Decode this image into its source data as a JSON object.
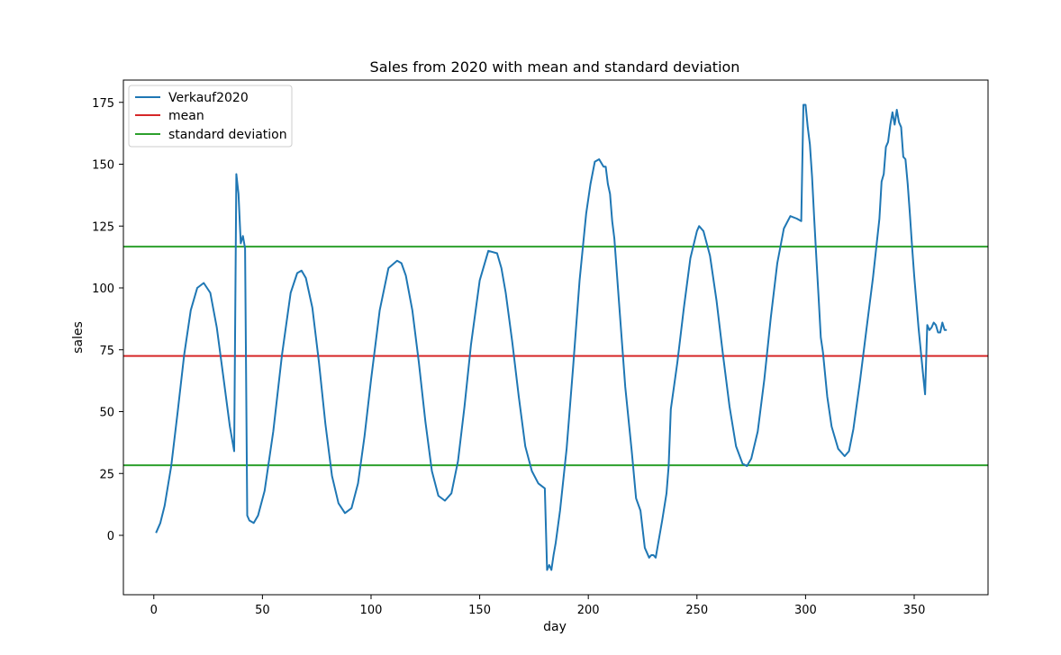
{
  "chart_data": {
    "type": "line",
    "title": "Sales from 2020 with mean and standard deviation",
    "xlabel": "day",
    "ylabel": "sales",
    "xlim": [
      -14,
      384
    ],
    "ylim": [
      -24,
      184
    ],
    "xticks": [
      0,
      50,
      100,
      150,
      200,
      250,
      300,
      350
    ],
    "yticks": [
      0,
      25,
      50,
      75,
      100,
      125,
      150,
      175
    ],
    "grid": false,
    "legend_position": "top-left",
    "series": [
      {
        "name": "Verkauf2020",
        "color": "#1f77b4",
        "x": [
          1,
          3,
          5,
          8,
          11,
          14,
          17,
          20,
          23,
          26,
          29,
          32,
          35,
          37,
          38,
          39,
          40,
          41,
          42,
          43,
          44,
          46,
          48,
          51,
          55,
          59,
          63,
          66,
          68,
          70,
          73,
          76,
          79,
          82,
          85,
          88,
          91,
          94,
          97,
          100,
          104,
          108,
          112,
          114,
          116,
          119,
          122,
          125,
          128,
          131,
          134,
          137,
          140,
          143,
          146,
          150,
          154,
          158,
          160,
          162,
          165,
          168,
          171,
          174,
          177,
          180,
          181,
          182,
          183,
          184,
          185,
          187,
          190,
          193,
          196,
          199,
          201,
          203,
          205,
          207,
          208,
          209,
          210,
          211,
          212,
          214,
          217,
          220,
          222,
          224,
          226,
          227,
          228,
          229,
          230,
          231,
          232,
          234,
          236,
          237,
          238,
          241,
          244,
          247,
          250,
          251,
          253,
          256,
          259,
          262,
          265,
          268,
          271,
          273,
          275,
          278,
          281,
          284,
          287,
          290,
          293,
          296,
          298,
          299,
          300,
          301,
          302,
          303,
          304,
          305,
          306,
          307,
          308,
          310,
          312,
          315,
          318,
          320,
          322,
          325,
          328,
          331,
          334,
          335,
          336,
          337,
          338,
          339,
          340,
          341,
          342,
          343,
          344,
          345,
          346,
          347,
          348,
          349,
          350,
          352,
          354,
          355,
          356,
          357,
          358,
          359,
          360,
          361,
          362,
          363,
          364,
          365
        ],
        "values": [
          1,
          5,
          12,
          28,
          50,
          73,
          91,
          100,
          102,
          98,
          84,
          64,
          44,
          34,
          146,
          138,
          118,
          121,
          116,
          8,
          6,
          5,
          8,
          18,
          42,
          73,
          98,
          106,
          107,
          104,
          92,
          70,
          45,
          24,
          13,
          9,
          11,
          21,
          40,
          63,
          91,
          108,
          111,
          110,
          105,
          91,
          70,
          46,
          26,
          16,
          14,
          17,
          30,
          52,
          77,
          103,
          115,
          114,
          108,
          98,
          78,
          56,
          36,
          26,
          21,
          19,
          -14,
          -12,
          -14,
          -8,
          -3,
          10,
          35,
          68,
          103,
          130,
          142,
          151,
          152,
          149,
          149,
          142,
          138,
          127,
          120,
          96,
          60,
          34,
          15,
          10,
          -5,
          -7,
          -9,
          -8,
          -8,
          -9,
          -4,
          6,
          17,
          28,
          51,
          70,
          92,
          112,
          123,
          125,
          123,
          113,
          95,
          73,
          52,
          36,
          29,
          28,
          31,
          42,
          63,
          88,
          110,
          124,
          129,
          128,
          127,
          174,
          174,
          165,
          158,
          145,
          128,
          112,
          96,
          80,
          74,
          56,
          44,
          35,
          32,
          34,
          43,
          62,
          83,
          104,
          128,
          143,
          146,
          157,
          159,
          166,
          171,
          166,
          172,
          167,
          165,
          153,
          152,
          142,
          130,
          117,
          105,
          84,
          66,
          57,
          85,
          83,
          84,
          86,
          85,
          82,
          82,
          86,
          83,
          83
        ]
      }
    ],
    "hlines": [
      {
        "name": "mean",
        "y": 72.5,
        "color": "#d62728"
      },
      {
        "name": "standard deviation",
        "y": 116.7,
        "color": "#2ca02c"
      },
      {
        "name": "standard deviation",
        "y": 28.3,
        "color": "#2ca02c"
      }
    ],
    "legend": [
      {
        "label": "Verkauf2020",
        "color": "#1f77b4"
      },
      {
        "label": "mean",
        "color": "#d62728"
      },
      {
        "label": "standard deviation",
        "color": "#2ca02c"
      }
    ]
  }
}
